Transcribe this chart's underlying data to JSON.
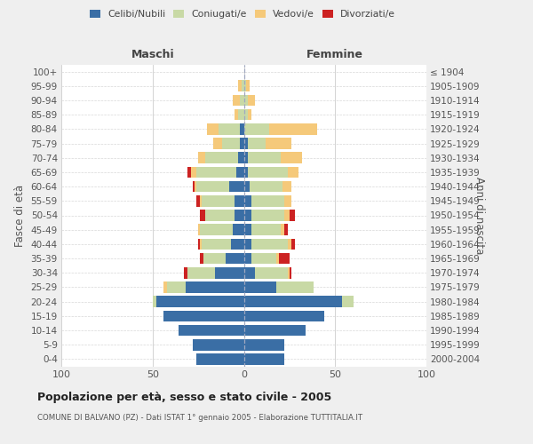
{
  "age_groups": [
    "0-4",
    "5-9",
    "10-14",
    "15-19",
    "20-24",
    "25-29",
    "30-34",
    "35-39",
    "40-44",
    "45-49",
    "50-54",
    "55-59",
    "60-64",
    "65-69",
    "70-74",
    "75-79",
    "80-84",
    "85-89",
    "90-94",
    "95-99",
    "100+"
  ],
  "birth_years": [
    "2000-2004",
    "1995-1999",
    "1990-1994",
    "1985-1989",
    "1980-1984",
    "1975-1979",
    "1970-1974",
    "1965-1969",
    "1960-1964",
    "1955-1959",
    "1950-1954",
    "1945-1949",
    "1940-1944",
    "1935-1939",
    "1930-1934",
    "1925-1929",
    "1920-1924",
    "1915-1919",
    "1910-1914",
    "1905-1909",
    "≤ 1904"
  ],
  "colors": {
    "celibe": "#3a6ea5",
    "coniugato": "#c8d9a5",
    "vedovo": "#f5c97a",
    "divorziato": "#cc2222"
  },
  "maschi": {
    "celibe": [
      26,
      28,
      36,
      44,
      48,
      32,
      16,
      10,
      7,
      6,
      5,
      5,
      8,
      4,
      3,
      2,
      2,
      0,
      0,
      0,
      0
    ],
    "coniugato": [
      0,
      0,
      0,
      0,
      2,
      10,
      15,
      12,
      16,
      18,
      16,
      18,
      18,
      22,
      18,
      10,
      12,
      3,
      2,
      1,
      0
    ],
    "vedovo": [
      0,
      0,
      0,
      0,
      0,
      2,
      0,
      0,
      1,
      1,
      0,
      1,
      1,
      3,
      4,
      5,
      6,
      2,
      4,
      2,
      0
    ],
    "divorziato": [
      0,
      0,
      0,
      0,
      0,
      0,
      2,
      2,
      1,
      0,
      3,
      2,
      1,
      2,
      0,
      0,
      0,
      0,
      0,
      0,
      0
    ]
  },
  "femmine": {
    "nubile": [
      22,
      22,
      34,
      44,
      54,
      18,
      6,
      4,
      4,
      4,
      4,
      4,
      3,
      2,
      2,
      2,
      0,
      0,
      0,
      0,
      0
    ],
    "coniugata": [
      0,
      0,
      0,
      0,
      6,
      20,
      18,
      14,
      20,
      16,
      18,
      18,
      18,
      22,
      18,
      10,
      14,
      2,
      2,
      1,
      0
    ],
    "vedova": [
      0,
      0,
      0,
      0,
      0,
      0,
      1,
      1,
      2,
      2,
      3,
      4,
      5,
      6,
      12,
      14,
      26,
      2,
      4,
      2,
      0
    ],
    "divorziata": [
      0,
      0,
      0,
      0,
      0,
      0,
      1,
      6,
      2,
      2,
      3,
      0,
      0,
      0,
      0,
      0,
      0,
      0,
      0,
      0,
      0
    ]
  },
  "xlim": 100,
  "title": "Popolazione per età, sesso e stato civile - 2005",
  "subtitle": "COMUNE DI BALVANO (PZ) - Dati ISTAT 1° gennaio 2005 - Elaborazione TUTTITALIA.IT",
  "ylabel_left": "Fasce di età",
  "ylabel_right": "Anni di nascita",
  "xlabel_maschi": "Maschi",
  "xlabel_femmine": "Femmine",
  "bg_color": "#efefef",
  "plot_bg": "#ffffff"
}
